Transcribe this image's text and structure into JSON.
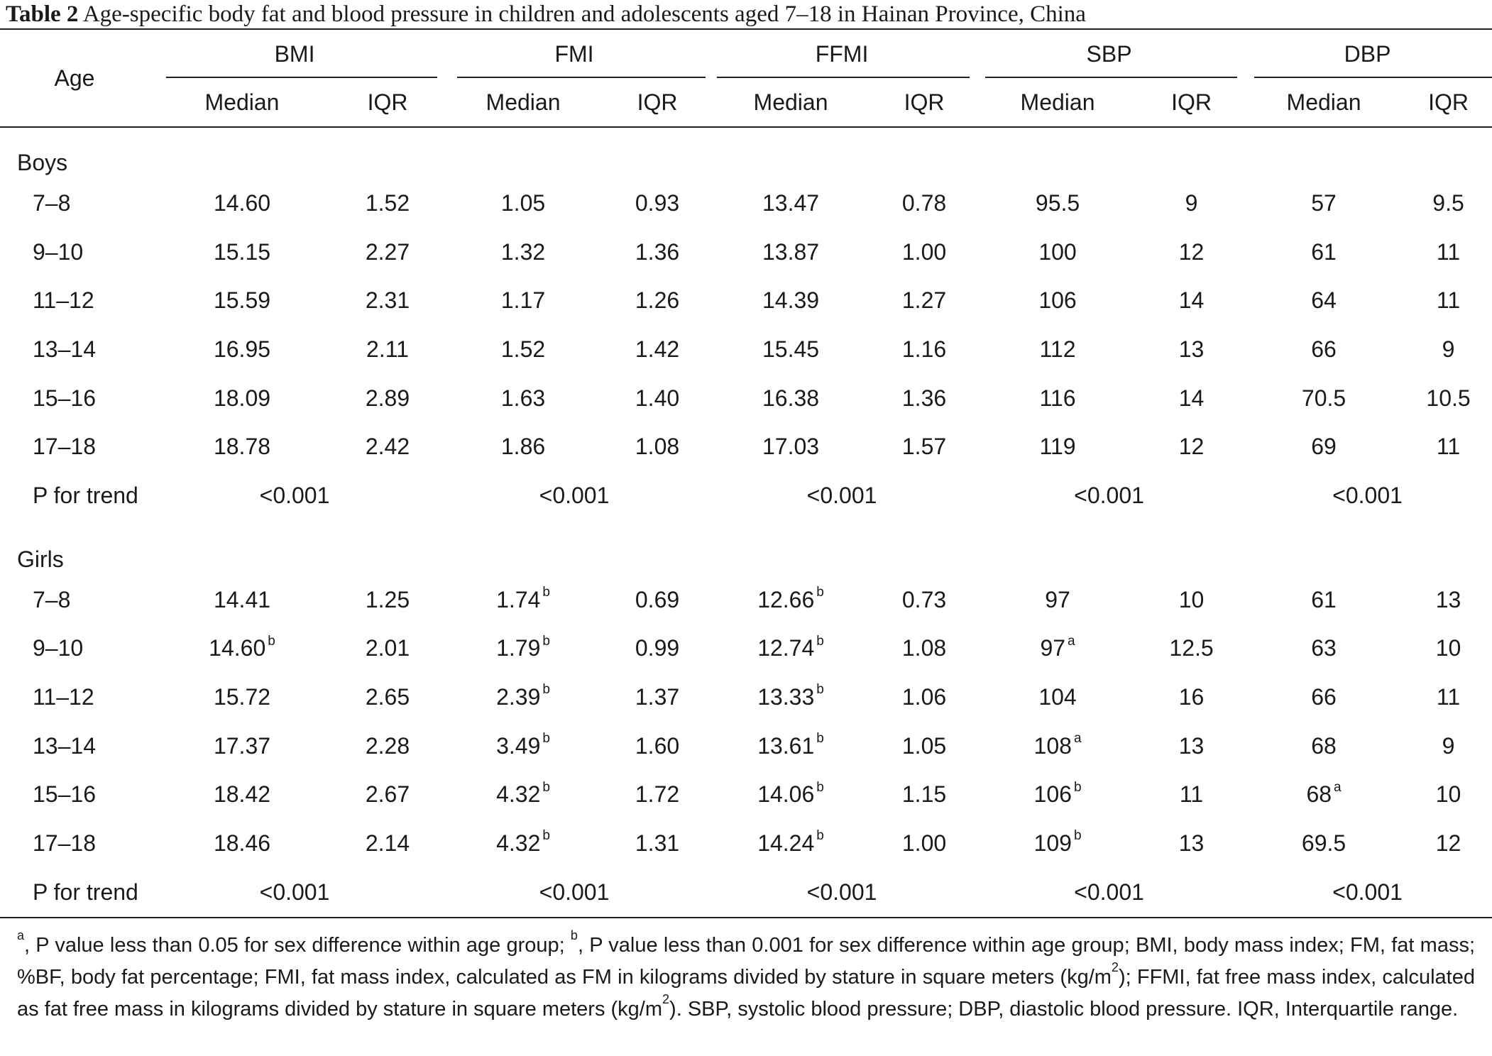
{
  "caption": {
    "label": "Table 2",
    "title": "Age-specific body fat and blood pressure in children and adolescents aged 7–18 in Hainan Province, China"
  },
  "header": {
    "age": "Age",
    "groups": [
      "BMI",
      "FMI",
      "FFMI",
      "SBP",
      "DBP"
    ],
    "median": "Median",
    "iqr": "IQR"
  },
  "boys": {
    "label": "Boys",
    "rows": [
      {
        "age": "7–8",
        "cells": [
          [
            "14.60",
            ""
          ],
          [
            "1.52",
            ""
          ],
          [
            "1.05",
            ""
          ],
          [
            "0.93",
            ""
          ],
          [
            "13.47",
            ""
          ],
          [
            "0.78",
            ""
          ],
          [
            "95.5",
            ""
          ],
          [
            "9",
            ""
          ],
          [
            "57",
            ""
          ],
          [
            "9.5",
            ""
          ]
        ]
      },
      {
        "age": "9–10",
        "cells": [
          [
            "15.15",
            ""
          ],
          [
            "2.27",
            ""
          ],
          [
            "1.32",
            ""
          ],
          [
            "1.36",
            ""
          ],
          [
            "13.87",
            ""
          ],
          [
            "1.00",
            ""
          ],
          [
            "100",
            ""
          ],
          [
            "12",
            ""
          ],
          [
            "61",
            ""
          ],
          [
            "11",
            ""
          ]
        ]
      },
      {
        "age": "11–12",
        "cells": [
          [
            "15.59",
            ""
          ],
          [
            "2.31",
            ""
          ],
          [
            "1.17",
            ""
          ],
          [
            "1.26",
            ""
          ],
          [
            "14.39",
            ""
          ],
          [
            "1.27",
            ""
          ],
          [
            "106",
            ""
          ],
          [
            "14",
            ""
          ],
          [
            "64",
            ""
          ],
          [
            "11",
            ""
          ]
        ]
      },
      {
        "age": "13–14",
        "cells": [
          [
            "16.95",
            ""
          ],
          [
            "2.11",
            ""
          ],
          [
            "1.52",
            ""
          ],
          [
            "1.42",
            ""
          ],
          [
            "15.45",
            ""
          ],
          [
            "1.16",
            ""
          ],
          [
            "112",
            ""
          ],
          [
            "13",
            ""
          ],
          [
            "66",
            ""
          ],
          [
            "9",
            ""
          ]
        ]
      },
      {
        "age": "15–16",
        "cells": [
          [
            "18.09",
            ""
          ],
          [
            "2.89",
            ""
          ],
          [
            "1.63",
            ""
          ],
          [
            "1.40",
            ""
          ],
          [
            "16.38",
            ""
          ],
          [
            "1.36",
            ""
          ],
          [
            "116",
            ""
          ],
          [
            "14",
            ""
          ],
          [
            "70.5",
            ""
          ],
          [
            "10.5",
            ""
          ]
        ]
      },
      {
        "age": "17–18",
        "cells": [
          [
            "18.78",
            ""
          ],
          [
            "2.42",
            ""
          ],
          [
            "1.86",
            ""
          ],
          [
            "1.08",
            ""
          ],
          [
            "17.03",
            ""
          ],
          [
            "1.57",
            ""
          ],
          [
            "119",
            ""
          ],
          [
            "12",
            ""
          ],
          [
            "69",
            ""
          ],
          [
            "11",
            ""
          ]
        ]
      }
    ],
    "trend_label": "P for trend",
    "trend": [
      "<0.001",
      "<0.001",
      "<0.001",
      "<0.001",
      "<0.001"
    ]
  },
  "girls": {
    "label": "Girls",
    "rows": [
      {
        "age": "7–8",
        "cells": [
          [
            "14.41",
            ""
          ],
          [
            "1.25",
            ""
          ],
          [
            "1.74",
            "b"
          ],
          [
            "0.69",
            ""
          ],
          [
            "12.66",
            "b"
          ],
          [
            "0.73",
            ""
          ],
          [
            "97",
            ""
          ],
          [
            "10",
            ""
          ],
          [
            "61",
            ""
          ],
          [
            "13",
            ""
          ]
        ]
      },
      {
        "age": "9–10",
        "cells": [
          [
            "14.60",
            "b"
          ],
          [
            "2.01",
            ""
          ],
          [
            "1.79",
            "b"
          ],
          [
            "0.99",
            ""
          ],
          [
            "12.74",
            "b"
          ],
          [
            "1.08",
            ""
          ],
          [
            "97",
            "a"
          ],
          [
            "12.5",
            ""
          ],
          [
            "63",
            ""
          ],
          [
            "10",
            ""
          ]
        ]
      },
      {
        "age": "11–12",
        "cells": [
          [
            "15.72",
            ""
          ],
          [
            "2.65",
            ""
          ],
          [
            "2.39",
            "b"
          ],
          [
            "1.37",
            ""
          ],
          [
            "13.33",
            "b"
          ],
          [
            "1.06",
            ""
          ],
          [
            "104",
            ""
          ],
          [
            "16",
            ""
          ],
          [
            "66",
            ""
          ],
          [
            "11",
            ""
          ]
        ]
      },
      {
        "age": "13–14",
        "cells": [
          [
            "17.37",
            ""
          ],
          [
            "2.28",
            ""
          ],
          [
            "3.49",
            "b"
          ],
          [
            "1.60",
            ""
          ],
          [
            "13.61",
            "b"
          ],
          [
            "1.05",
            ""
          ],
          [
            "108",
            "a"
          ],
          [
            "13",
            ""
          ],
          [
            "68",
            ""
          ],
          [
            "9",
            ""
          ]
        ]
      },
      {
        "age": "15–16",
        "cells": [
          [
            "18.42",
            ""
          ],
          [
            "2.67",
            ""
          ],
          [
            "4.32",
            "b"
          ],
          [
            "1.72",
            ""
          ],
          [
            "14.06",
            "b"
          ],
          [
            "1.15",
            ""
          ],
          [
            "106",
            "b"
          ],
          [
            "11",
            ""
          ],
          [
            "68",
            "a"
          ],
          [
            "10",
            ""
          ]
        ]
      },
      {
        "age": "17–18",
        "cells": [
          [
            "18.46",
            ""
          ],
          [
            "2.14",
            ""
          ],
          [
            "4.32",
            "b"
          ],
          [
            "1.31",
            ""
          ],
          [
            "14.24",
            "b"
          ],
          [
            "1.00",
            ""
          ],
          [
            "109",
            "b"
          ],
          [
            "13",
            ""
          ],
          [
            "69.5",
            ""
          ],
          [
            "12",
            ""
          ]
        ]
      }
    ],
    "trend_label": "P for trend",
    "trend": [
      "<0.001",
      "<0.001",
      "<0.001",
      "<0.001",
      "<0.001"
    ]
  },
  "footnote": {
    "sup_a": "a",
    "text_a": ", P value less than 0.05 for sex difference within age group; ",
    "sup_b": "b",
    "text_b": ", P value less than 0.001 for sex difference within age group; BMI, body mass index; FM, fat mass; %BF, body fat percentage; FMI, fat mass index, calculated as FM in kilograms divided by stature in square meters (kg/m",
    "sup_2": "2",
    "text_c": "); FFMI, fat free mass index, calculated as fat free mass in kilograms divided by stature in square meters (kg/m",
    "sup_2b": "2",
    "text_d": "). SBP, systolic blood pressure; DBP, diastolic blood pressure. IQR, Interquartile range."
  }
}
